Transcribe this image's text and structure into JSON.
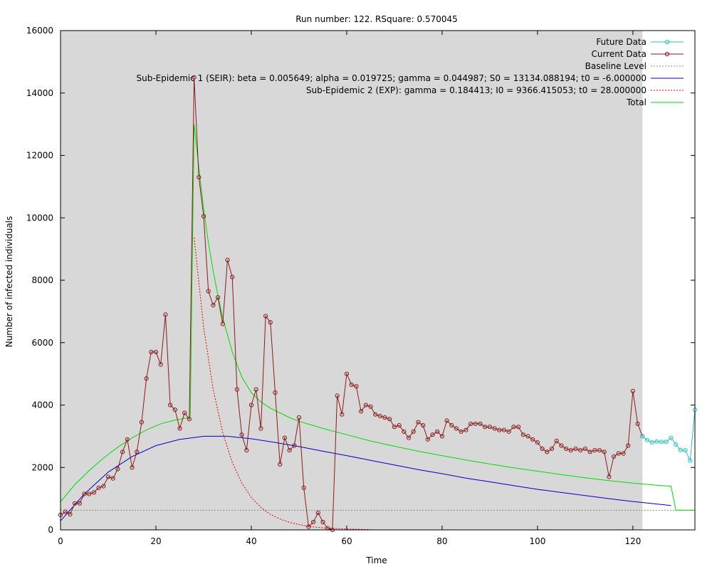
{
  "chart_data": {
    "type": "line",
    "title": "Run number: 122. RSquare: 0.570045",
    "xlabel": "Time",
    "ylabel": "Number of infected individuals",
    "xlim": [
      0,
      133
    ],
    "ylim": [
      0,
      16000
    ],
    "xticks": [
      0,
      20,
      40,
      60,
      80,
      100,
      120
    ],
    "yticks": [
      0,
      2000,
      4000,
      6000,
      8000,
      10000,
      12000,
      14000,
      16000
    ],
    "shaded_region": {
      "x": [
        0,
        122
      ],
      "color": "#d8d8d8"
    },
    "grid": false,
    "legend_position": "top-right",
    "series": [
      {
        "name": "Future Data",
        "style": "line-points",
        "color": "#25c2c2",
        "x": [
          122,
          123,
          124,
          125,
          126,
          127,
          128,
          129,
          130,
          131,
          132,
          133
        ],
        "y": [
          3000,
          2880,
          2800,
          2830,
          2820,
          2820,
          2950,
          2740,
          2560,
          2550,
          2220,
          3850
        ]
      },
      {
        "name": "Current Data",
        "style": "line-points",
        "color": "#8b1a1a",
        "x": [
          0,
          1,
          2,
          3,
          4,
          5,
          6,
          7,
          8,
          9,
          10,
          11,
          12,
          13,
          14,
          15,
          16,
          17,
          18,
          19,
          20,
          21,
          22,
          23,
          24,
          25,
          26,
          27,
          28,
          29,
          30,
          31,
          32,
          33,
          34,
          35,
          36,
          37,
          38,
          39,
          40,
          41,
          42,
          43,
          44,
          45,
          46,
          47,
          48,
          49,
          50,
          51,
          52,
          53,
          54,
          55,
          56,
          57,
          58,
          59,
          60,
          61,
          62,
          63,
          64,
          65,
          66,
          67,
          68,
          69,
          70,
          71,
          72,
          73,
          74,
          75,
          76,
          77,
          78,
          79,
          80,
          81,
          82,
          83,
          84,
          85,
          86,
          87,
          88,
          89,
          90,
          91,
          92,
          93,
          94,
          95,
          96,
          97,
          98,
          99,
          100,
          101,
          102,
          103,
          104,
          105,
          106,
          107,
          108,
          109,
          110,
          111,
          112,
          113,
          114,
          115,
          116,
          117,
          118,
          119,
          120,
          121,
          122
        ],
        "y": [
          480,
          580,
          500,
          850,
          850,
          1150,
          1150,
          1200,
          1350,
          1400,
          1700,
          1650,
          1950,
          2500,
          2900,
          2000,
          2500,
          3450,
          4850,
          5700,
          5700,
          5300,
          6900,
          4000,
          3850,
          3250,
          3750,
          3550,
          14500,
          11300,
          10050,
          7650,
          7200,
          7450,
          6600,
          8650,
          8100,
          4500,
          3050,
          2550,
          4000,
          4500,
          3250,
          6850,
          6650,
          4400,
          2100,
          2950,
          2550,
          2700,
          3600,
          1350,
          100,
          250,
          550,
          250,
          50,
          0,
          4300,
          3700,
          5000,
          4650,
          4600,
          3800,
          4000,
          3950,
          3700,
          3650,
          3600,
          3550,
          3300,
          3350,
          3150,
          2950,
          3150,
          3450,
          3350,
          2900,
          3050,
          3150,
          3000,
          3500,
          3350,
          3250,
          3150,
          3200,
          3400,
          3400,
          3400,
          3300,
          3300,
          3250,
          3200,
          3200,
          3150,
          3300,
          3300,
          3050,
          3000,
          2900,
          2800,
          2600,
          2500,
          2600,
          2850,
          2700,
          2600,
          2550,
          2600,
          2550,
          2600,
          2500,
          2550,
          2550,
          2500,
          1700,
          2350,
          2450,
          2450,
          2700,
          4450,
          3400,
          3000
        ]
      },
      {
        "name": "Baseline Level",
        "style": "dotted",
        "color": "#8a8a8a",
        "x": [
          0,
          133
        ],
        "y": [
          630,
          630
        ]
      },
      {
        "name": "Sub-Epidemic 1 (SEIR): beta = 0.005649; alpha = 0.019725; gamma = 0.044987; S0 = 13134.088194; t0 = -6.000000",
        "style": "line",
        "color": "#0000cc",
        "x": [
          0,
          5,
          10,
          15,
          20,
          25,
          30,
          35,
          40,
          45,
          50,
          55,
          60,
          65,
          70,
          75,
          80,
          85,
          90,
          95,
          100,
          105,
          110,
          115,
          120,
          125,
          128
        ],
        "y": [
          290,
          1150,
          1850,
          2350,
          2700,
          2900,
          3000,
          3000,
          2920,
          2800,
          2670,
          2520,
          2380,
          2230,
          2080,
          1930,
          1800,
          1660,
          1540,
          1420,
          1300,
          1200,
          1100,
          1000,
          910,
          830,
          780
        ]
      },
      {
        "name": "Sub-Epidemic 2 (EXP): gamma = 0.184413; I0 = 9366.415053; t0 = 28.000000",
        "style": "dotted",
        "color": "#dd0000",
        "x": [
          28,
          30,
          32,
          34,
          36,
          38,
          40,
          42,
          44,
          46,
          48,
          50,
          52,
          54,
          56,
          58,
          60,
          62,
          64,
          65
        ],
        "y": [
          9366,
          6500,
          4500,
          3120,
          2160,
          1500,
          1040,
          720,
          500,
          350,
          240,
          170,
          115,
          80,
          55,
          40,
          28,
          20,
          13,
          10
        ]
      },
      {
        "name": "Total",
        "style": "line",
        "color": "#00dd00",
        "x": [
          0,
          3,
          6,
          9,
          12,
          15,
          18,
          21,
          24,
          27,
          27.2,
          28,
          29,
          30,
          31,
          32,
          33,
          34,
          36,
          38,
          40,
          42,
          44,
          46,
          48,
          50,
          55,
          60,
          65,
          70,
          75,
          80,
          85,
          90,
          95,
          100,
          105,
          110,
          115,
          120,
          125,
          128,
          129,
          133
        ],
        "y": [
          900,
          1450,
          1900,
          2300,
          2650,
          2950,
          3200,
          3400,
          3520,
          3600,
          3650,
          13000,
          11600,
          10300,
          9200,
          8300,
          7500,
          6800,
          5700,
          4900,
          4400,
          4100,
          3900,
          3750,
          3600,
          3480,
          3250,
          3050,
          2850,
          2680,
          2520,
          2380,
          2240,
          2110,
          1990,
          1880,
          1770,
          1670,
          1580,
          1500,
          1430,
          1400,
          630,
          630
        ]
      }
    ]
  }
}
